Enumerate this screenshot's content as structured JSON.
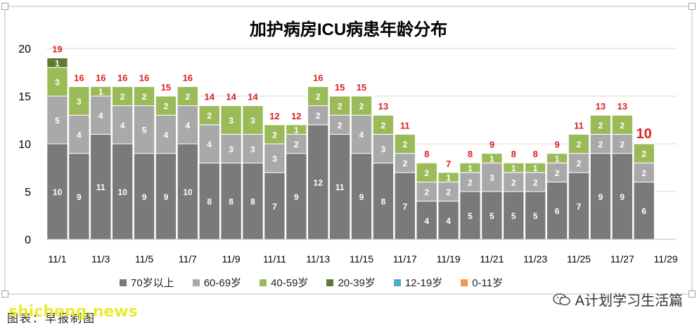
{
  "chart_data": {
    "type": "bar",
    "stacked": true,
    "title": "加护病房ICU病患年龄分布",
    "xlabel": "",
    "ylabel": "",
    "ylim": [
      0,
      20
    ],
    "yticks": [
      0,
      5,
      10,
      15,
      20
    ],
    "grid": true,
    "legend_position": "bottom",
    "categories": [
      "11/1",
      "11/2",
      "11/3",
      "11/4",
      "11/5",
      "11/6",
      "11/7",
      "11/8",
      "11/9",
      "11/10",
      "11/11",
      "11/12",
      "11/13",
      "11/14",
      "11/15",
      "11/16",
      "11/17",
      "11/18",
      "11/19",
      "11/20",
      "11/21",
      "11/22",
      "11/23",
      "11/24",
      "11/25",
      "11/26",
      "11/27",
      "11/28",
      "11/29"
    ],
    "xtick_labels": [
      "11/1",
      "11/3",
      "11/5",
      "11/7",
      "11/9",
      "11/11",
      "11/13",
      "11/15",
      "11/17",
      "11/19",
      "11/21",
      "11/23",
      "11/25",
      "11/27",
      "11/29"
    ],
    "totals": [
      19,
      16,
      16,
      16,
      16,
      15,
      16,
      14,
      14,
      14,
      12,
      12,
      16,
      15,
      15,
      13,
      11,
      8,
      7,
      8,
      9,
      8,
      8,
      9,
      11,
      13,
      13,
      10,
      null
    ],
    "series": [
      {
        "name": "70岁以上",
        "color": "#7a7a7a",
        "values": [
          10,
          9,
          11,
          10,
          9,
          9,
          10,
          8,
          8,
          8,
          7,
          9,
          12,
          11,
          9,
          8,
          7,
          4,
          4,
          5,
          5,
          5,
          5,
          6,
          7,
          9,
          9,
          6,
          null
        ]
      },
      {
        "name": "60-69岁",
        "color": "#a9a9a9",
        "values": [
          5,
          4,
          4,
          4,
          5,
          4,
          4,
          4,
          3,
          3,
          3,
          2,
          2,
          2,
          4,
          3,
          2,
          2,
          2,
          2,
          3,
          2,
          2,
          2,
          2,
          2,
          2,
          2,
          null
        ]
      },
      {
        "name": "40-59岁",
        "color": "#9bbb59",
        "values": [
          3,
          3,
          1,
          2,
          2,
          2,
          2,
          2,
          3,
          3,
          2,
          1,
          2,
          2,
          2,
          2,
          2,
          2,
          1,
          1,
          1,
          1,
          1,
          1,
          2,
          2,
          2,
          2,
          null
        ]
      },
      {
        "name": "20-39岁",
        "color": "#5f7a32",
        "values": [
          1,
          0,
          0,
          0,
          0,
          0,
          0,
          0,
          0,
          0,
          0,
          0,
          0,
          0,
          0,
          0,
          0,
          0,
          0,
          0,
          0,
          0,
          0,
          0,
          0,
          0,
          0,
          0,
          null
        ]
      },
      {
        "name": "12-19岁",
        "color": "#4bacc6",
        "values": [
          0,
          0,
          0,
          0,
          0,
          0,
          0,
          0,
          0,
          0,
          0,
          0,
          0,
          0,
          0,
          0,
          0,
          0,
          0,
          0,
          0,
          0,
          0,
          0,
          0,
          0,
          0,
          0,
          null
        ]
      },
      {
        "name": "0-11岁",
        "color": "#f79646",
        "values": [
          0,
          0,
          0,
          0,
          0,
          0,
          0,
          0,
          0,
          0,
          0,
          0,
          0,
          0,
          0,
          0,
          0,
          0,
          0,
          0,
          0,
          0,
          0,
          0,
          0,
          0,
          0,
          0,
          null
        ]
      }
    ]
  },
  "caption": "图表：早报制图",
  "watermark": "shicheng.news",
  "brand": "A计划学习生活篇",
  "brand_icon": "wechat-icon"
}
